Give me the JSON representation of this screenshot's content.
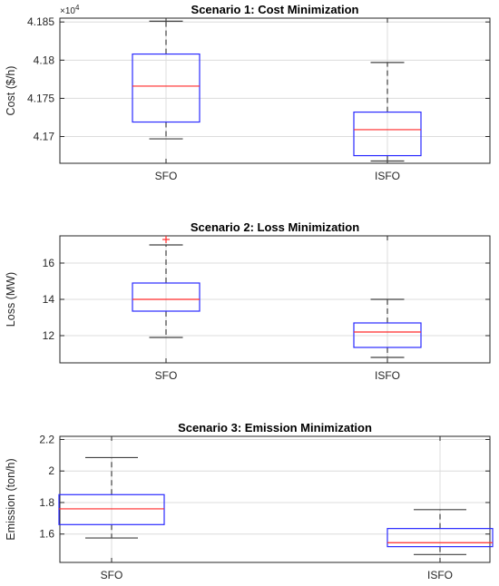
{
  "colors": {
    "box": "#2a2aff",
    "median": "#ff2a2a",
    "whisker": "#404040",
    "outlier": "#ff2a2a",
    "grid": "#dcdcdc",
    "axis": "#262626"
  },
  "chart_data": [
    {
      "type": "box",
      "title": "Scenario 1: Cost Minimization",
      "ylabel": "Cost ($/h)",
      "xlabel": "",
      "exponent_label": "×10",
      "exponent_power": "4",
      "categories": [
        "SFO",
        "ISFO"
      ],
      "ylim": [
        41665,
        41855
      ],
      "yticks": [
        41700,
        41750,
        41800,
        41850
      ],
      "ytick_labels": [
        "4.17",
        "4.175",
        "4.18",
        "4.185"
      ],
      "grid": true,
      "boxes": [
        {
          "category": "SFO",
          "min": 41697,
          "q1": 41719,
          "median": 41766,
          "q3": 41808,
          "max": 41851,
          "outliers": []
        },
        {
          "category": "ISFO",
          "min": 41668,
          "q1": 41675,
          "median": 41709,
          "q3": 41732,
          "max": 41797,
          "outliers": []
        }
      ]
    },
    {
      "type": "box",
      "title": "Scenario 2: Loss Minimization",
      "ylabel": "Loss (MW)",
      "xlabel": "",
      "categories": [
        "SFO",
        "ISFO"
      ],
      "ylim": [
        10.5,
        17.5
      ],
      "yticks": [
        12,
        14,
        16
      ],
      "ytick_labels": [
        "12",
        "14",
        "16"
      ],
      "grid": true,
      "boxes": [
        {
          "category": "SFO",
          "min": 11.9,
          "q1": 13.35,
          "median": 14.0,
          "q3": 14.9,
          "max": 17.0,
          "outliers": [
            17.3
          ]
        },
        {
          "category": "ISFO",
          "min": 10.8,
          "q1": 11.35,
          "median": 12.2,
          "q3": 12.7,
          "max": 14.0,
          "outliers": []
        }
      ]
    },
    {
      "type": "box",
      "title": "Scenario 3: Emission Minimization",
      "ylabel": "Emission (ton/h)",
      "xlabel": "",
      "categories": [
        "SFO",
        "ISFO"
      ],
      "ylim": [
        1.42,
        2.22
      ],
      "yticks": [
        1.6,
        1.8,
        2.0,
        2.2
      ],
      "ytick_labels": [
        "1.6",
        "1.8",
        "2",
        "2.2"
      ],
      "grid": true,
      "boxes": [
        {
          "category": "SFO",
          "min": 1.575,
          "q1": 1.66,
          "median": 1.76,
          "q3": 1.85,
          "max": 2.085,
          "outliers": []
        },
        {
          "category": "ISFO",
          "min": 1.47,
          "q1": 1.52,
          "median": 1.545,
          "q3": 1.635,
          "max": 1.755,
          "outliers": []
        }
      ]
    }
  ]
}
